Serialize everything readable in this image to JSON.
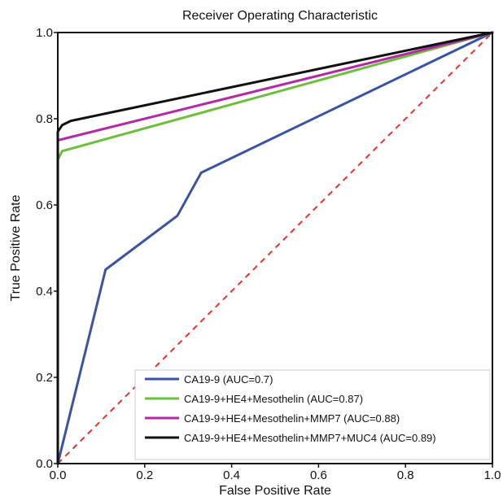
{
  "chart_data": {
    "type": "line",
    "title": "Receiver Operating Characteristic",
    "xlabel": "False Positive Rate",
    "ylabel": "True Positive Rate",
    "xlim": [
      0,
      1
    ],
    "ylim": [
      0,
      1
    ],
    "xticks": [
      "0.0",
      "0.2",
      "0.4",
      "0.6",
      "0.8",
      "1.0"
    ],
    "yticks": [
      "0.0",
      "0.2",
      "0.4",
      "0.6",
      "0.8",
      "1.0"
    ],
    "grid": false,
    "legend_position": "lower-right",
    "series": [
      {
        "name": "CA19-9 (AUC=0.7)",
        "color": "#3a53a4",
        "x": [
          0.0,
          0.11,
          0.275,
          0.33,
          1.0
        ],
        "y": [
          0.0,
          0.45,
          0.575,
          0.675,
          1.0
        ]
      },
      {
        "name": "CA19-9+HE4+Mesothelin (AUC=0.87)",
        "color": "#6cbf3c",
        "x": [
          0.0,
          0.0,
          0.01,
          1.0
        ],
        "y": [
          0.0,
          0.705,
          0.725,
          1.0
        ]
      },
      {
        "name": "CA19-9+HE4+Mesothelin+MMP7 (AUC=0.88)",
        "color": "#b22aa6",
        "x": [
          0.0,
          0.0,
          1.0
        ],
        "y": [
          0.0,
          0.75,
          1.0
        ]
      },
      {
        "name": "CA19-9+HE4+Mesothelin+MMP7+MUC4 (AUC=0.89)",
        "color": "#111111",
        "x": [
          0.0,
          0.0,
          0.01,
          0.03,
          1.0
        ],
        "y": [
          0.0,
          0.77,
          0.785,
          0.795,
          1.0
        ]
      }
    ],
    "reference_line": {
      "color": "#e8302a",
      "style": "dashed",
      "x": [
        0,
        1
      ],
      "y": [
        0,
        1
      ]
    }
  }
}
